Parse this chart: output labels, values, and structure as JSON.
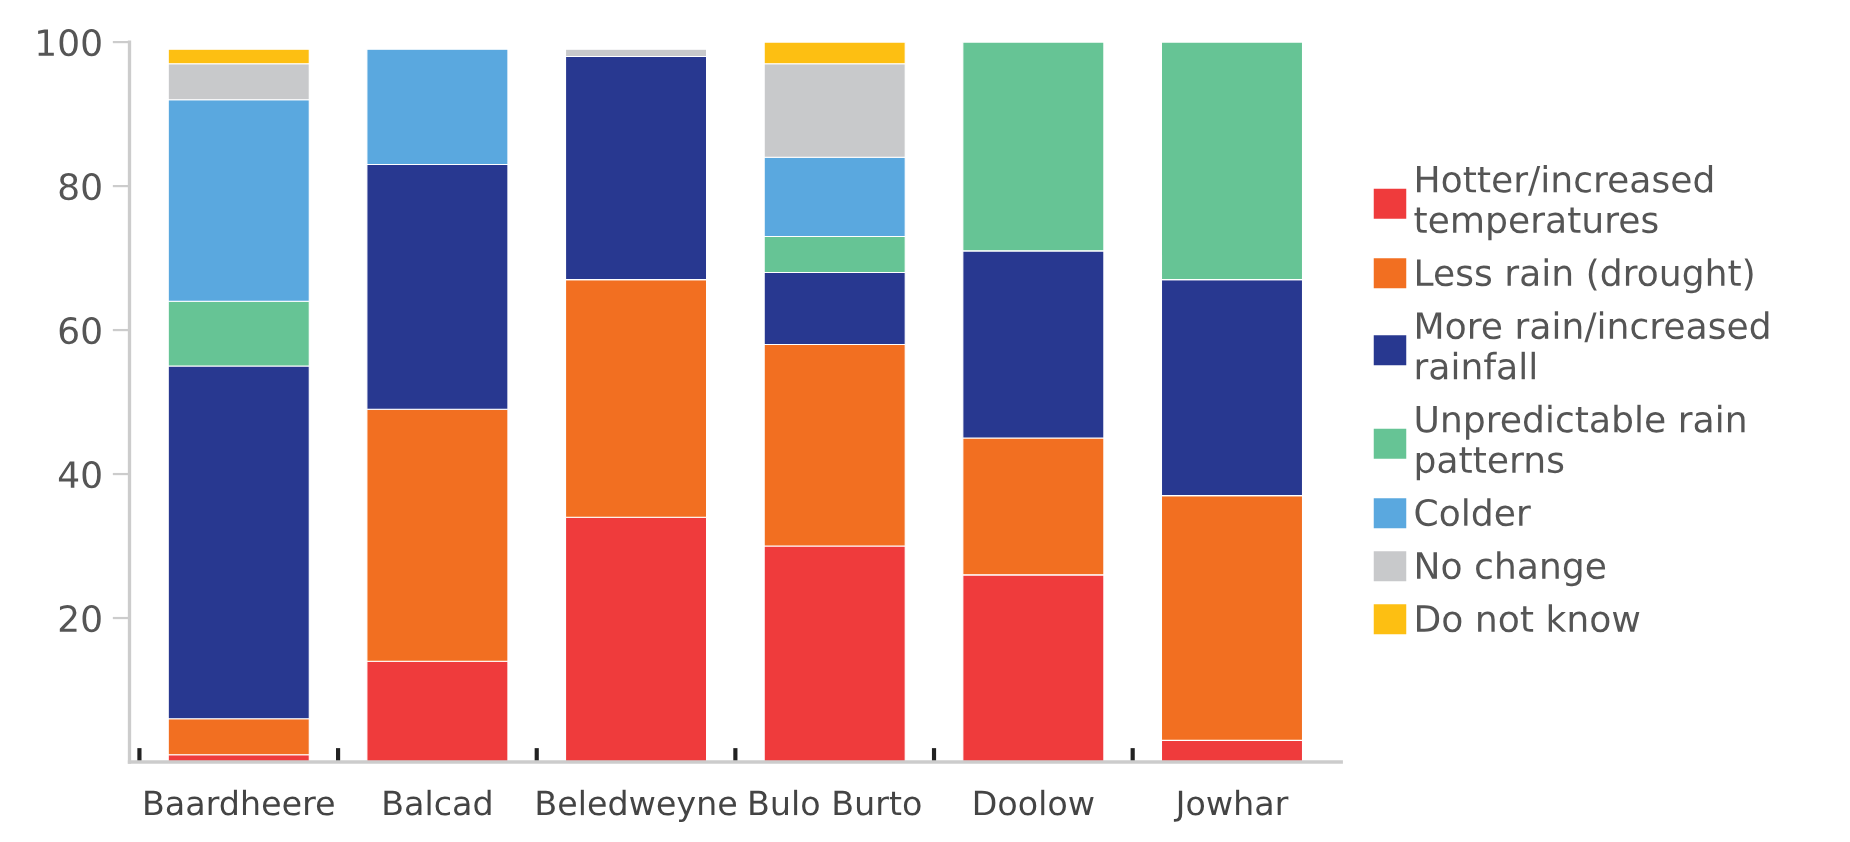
{
  "chart_data": {
    "type": "bar",
    "stacked": true,
    "categories": [
      "Baardheere",
      "Balcad",
      "Beledweyne",
      "Bulo Burto",
      "Doolow",
      "Jowhar"
    ],
    "series": [
      {
        "name": "Hotter/increased\ntemperatures",
        "color": "#ef3b3c",
        "values": [
          1,
          14,
          34,
          30,
          26,
          3
        ]
      },
      {
        "name": "Less rain (drought)",
        "color": "#f26f21",
        "values": [
          5,
          35,
          33,
          28,
          19,
          34
        ]
      },
      {
        "name": "More rain/increased\nrainfall",
        "color": "#283890",
        "values": [
          49,
          34,
          31,
          10,
          26,
          30
        ]
      },
      {
        "name": "Unpredictable rain\npatterns",
        "color": "#66c495",
        "values": [
          9,
          null,
          null,
          5,
          29,
          33
        ]
      },
      {
        "name": "Colder",
        "color": "#5aa8df",
        "values": [
          28,
          16,
          null,
          11,
          null,
          null
        ]
      },
      {
        "name": "No change",
        "color": "#c8c9cb",
        "values": [
          5,
          null,
          1,
          13,
          null,
          null
        ]
      },
      {
        "name": "Do not know",
        "color": "#fdbf12",
        "values": [
          2,
          null,
          null,
          3,
          null,
          null
        ]
      }
    ],
    "ylim": [
      0,
      100
    ],
    "yticks": [
      20,
      40,
      60,
      80,
      100
    ],
    "grid": false,
    "legend": "right"
  }
}
